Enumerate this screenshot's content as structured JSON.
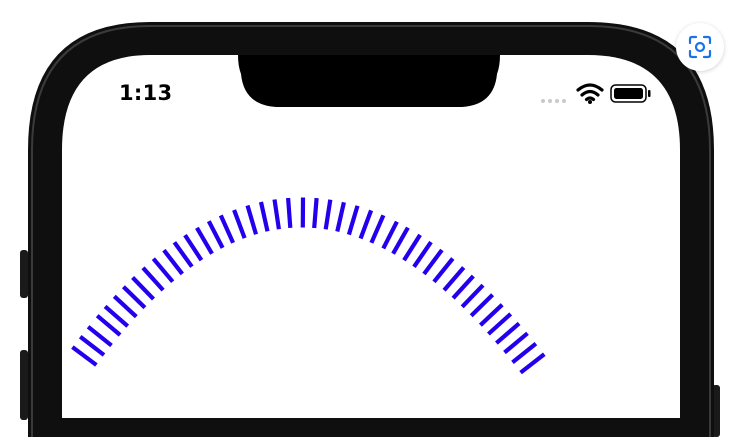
{
  "status_bar": {
    "time": "1:13",
    "signal_icon": "signal-dots-icon",
    "wifi_icon": "wifi-icon",
    "battery_icon": "battery-icon",
    "battery_level": 1.0
  },
  "overlay": {
    "lens_icon": "visual-search-icon"
  },
  "canvas": {
    "arc_tick_color": "#2200ee",
    "arc_tick_count": 44
  },
  "colors": {
    "bezel": "#0f0f0f",
    "screen": "#ffffff",
    "ticks": "#2200ee",
    "lens_accent": "#1a73e8"
  }
}
